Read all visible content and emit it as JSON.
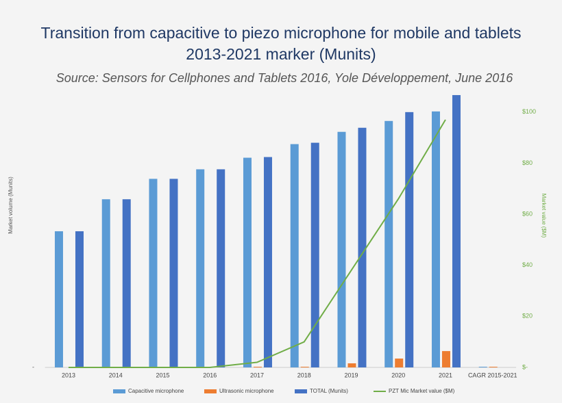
{
  "chart_data": {
    "type": "bar",
    "title": "Transition from capacitive to piezo microphone for mobile and tablets",
    "title_line2": "2013-2021 marker (Munits)",
    "subtitle": "Source: Sensors for Cellphones and Tablets 2016, Yole Développement, June 2016",
    "y_label": "Market volume (Munits)",
    "y2_label": "Market value ($M)",
    "categories": [
      "2013",
      "2014",
      "2015",
      "2016",
      "2017",
      "2018",
      "2019",
      "2020",
      "2021",
      "CAGR 2015-2021"
    ],
    "ylim": [
      0,
      405
    ],
    "yticks": [
      {
        "value": 0,
        "label": "-"
      }
    ],
    "y2lim": [
      0,
      108
    ],
    "y2ticks": [
      {
        "value": 0,
        "label": "$-"
      },
      {
        "value": 20,
        "label": "$20"
      },
      {
        "value": 40,
        "label": "$40"
      },
      {
        "value": 60,
        "label": "$60"
      },
      {
        "value": 80,
        "label": "$80"
      },
      {
        "value": 100,
        "label": "$100"
      }
    ],
    "series": [
      {
        "name": "Capacitive microphone",
        "color": "#5b9bd5",
        "values": [
          200,
          247,
          277,
          291,
          308,
          328,
          346,
          362,
          376,
          1
        ]
      },
      {
        "name": "Ultrasonic microphone",
        "color": "#ed7d31",
        "values": [
          0,
          0,
          0,
          0,
          1,
          1,
          6,
          13,
          24,
          1
        ]
      },
      {
        "name": "TOTAL (Munits)",
        "color": "#4472c4",
        "values": [
          200,
          247,
          277,
          291,
          309,
          330,
          352,
          375,
          400,
          0
        ]
      },
      {
        "name": "PZT Mic Market value ($M)",
        "color": "#70ad47",
        "axis": "y2",
        "type": "line",
        "values": [
          0,
          0,
          0,
          0,
          2,
          10,
          38,
          66,
          97,
          null
        ]
      }
    ]
  }
}
